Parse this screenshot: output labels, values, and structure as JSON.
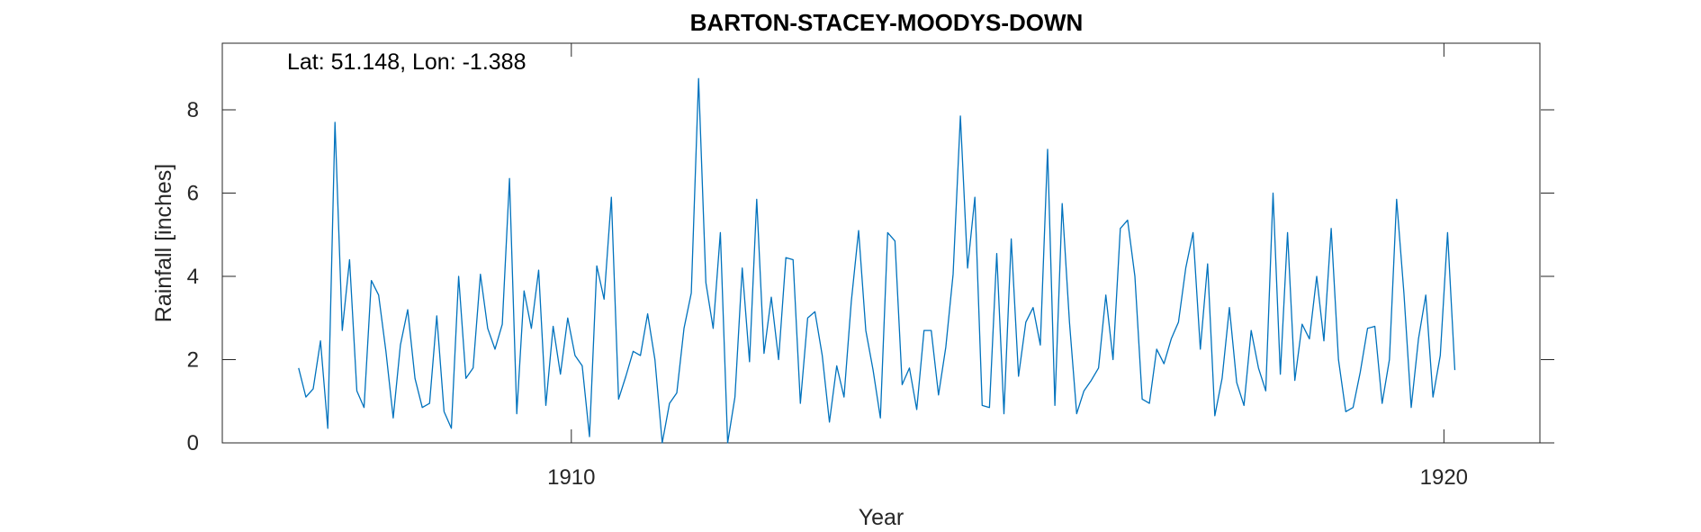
{
  "chart_data": {
    "type": "line",
    "title": "BARTON-STACEY-MOODYS-DOWN",
    "xlabel": "Year",
    "ylabel": "Rainfall [inches]",
    "annotation": "Lat: 51.148, Lon: -1.388",
    "xlim": [
      1906,
      1921.1
    ],
    "ylim": [
      0,
      9.6
    ],
    "xticks": [
      1910,
      1920
    ],
    "xtick_labels": [
      "1910",
      "1920"
    ],
    "yticks": [
      0,
      2,
      4,
      6,
      8
    ],
    "ytick_labels": [
      "0",
      "2",
      "4",
      "6",
      "8"
    ],
    "grid": false,
    "line_color": "#0072BD",
    "series": [
      {
        "x_start": 1906.875,
        "x_step": 0.0833333,
        "values": [
          1.8,
          1.1,
          1.3,
          2.45,
          0.35,
          7.7,
          2.7,
          4.4,
          1.25,
          0.85,
          3.9,
          3.55,
          2.2,
          0.6,
          2.35,
          3.2,
          1.55,
          0.85,
          0.95,
          3.05,
          0.75,
          0.35,
          4.0,
          1.55,
          1.8,
          4.05,
          2.75,
          2.25,
          2.85,
          6.35,
          0.7,
          3.65,
          2.75,
          4.15,
          0.9,
          2.8,
          1.65,
          3.0,
          2.1,
          1.85,
          0.15,
          4.25,
          3.45,
          5.9,
          1.05,
          1.6,
          2.2,
          2.1,
          3.1,
          2.0,
          0.0,
          0.95,
          1.2,
          2.75,
          3.6,
          8.75,
          3.85,
          2.75,
          5.05,
          0.0,
          1.1,
          4.2,
          1.95,
          5.85,
          2.15,
          3.5,
          2.0,
          4.45,
          4.4,
          0.95,
          3.0,
          3.15,
          2.1,
          0.5,
          1.85,
          1.1,
          3.4,
          5.1,
          2.7,
          1.75,
          0.6,
          5.05,
          4.85,
          1.4,
          1.8,
          0.8,
          2.7,
          2.7,
          1.15,
          2.3,
          4.05,
          7.85,
          4.2,
          5.9,
          0.9,
          0.85,
          4.55,
          0.7,
          4.9,
          1.6,
          2.9,
          3.25,
          2.35,
          7.05,
          0.9,
          5.75,
          2.9,
          0.7,
          1.25,
          1.5,
          1.8,
          3.55,
          2.0,
          5.15,
          5.35,
          4.0,
          1.05,
          0.95,
          2.25,
          1.9,
          2.5,
          2.9,
          4.2,
          5.05,
          2.25,
          4.3,
          0.65,
          1.55,
          3.25,
          1.45,
          0.9,
          2.7,
          1.8,
          1.25,
          6.0,
          1.65,
          5.05,
          1.5,
          2.85,
          2.5,
          4.0,
          2.45,
          5.15,
          2.0,
          0.75,
          0.85,
          1.7,
          2.75,
          2.8,
          0.95,
          2.0,
          5.85,
          3.6,
          0.85,
          2.5,
          3.55,
          1.1,
          2.1,
          5.05,
          1.75
        ]
      }
    ]
  }
}
